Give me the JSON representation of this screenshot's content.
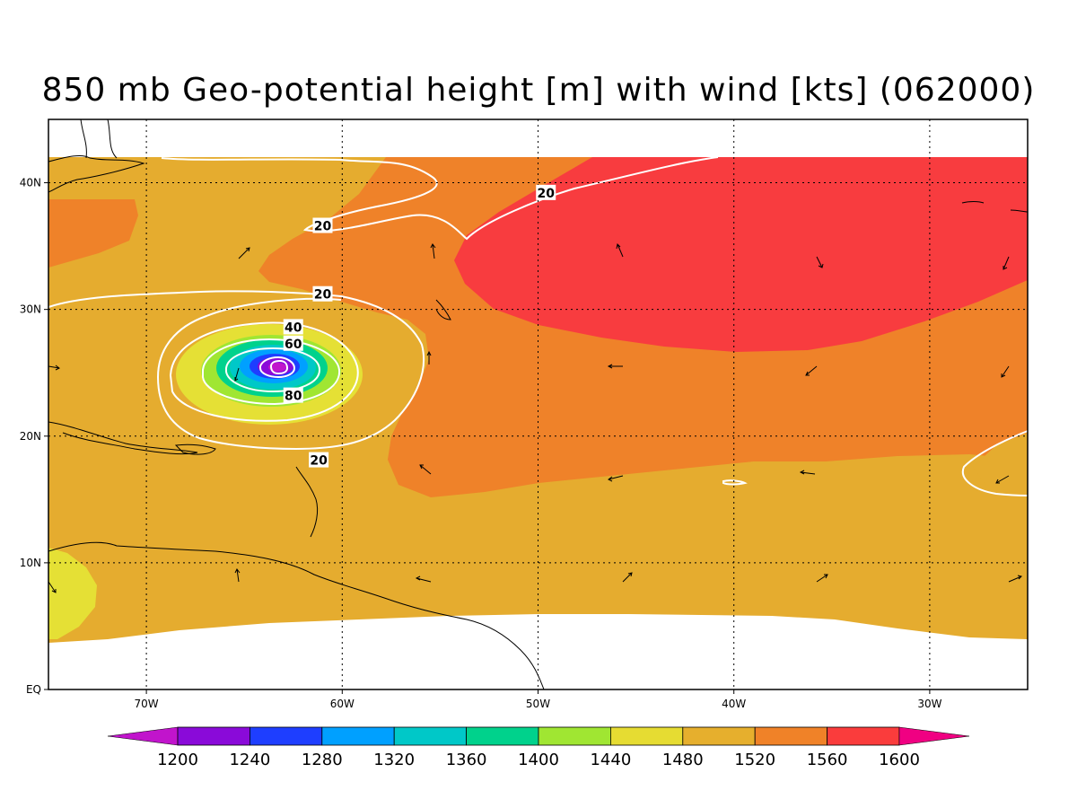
{
  "title": "850 mb Geo-potential height [m] with wind [kts] (062000)",
  "map": {
    "lat_range": [
      0,
      45
    ],
    "lon_range": [
      -75,
      -25
    ],
    "lat_ticks": [
      {
        "value": 40,
        "label": "40N"
      },
      {
        "value": 30,
        "label": "30N"
      },
      {
        "value": 20,
        "label": "20N"
      },
      {
        "value": 10,
        "label": "10N"
      },
      {
        "value": 0,
        "label": "EQ"
      }
    ],
    "lon_ticks": [
      {
        "value": -70,
        "label": "70W"
      },
      {
        "value": -60,
        "label": "60W"
      },
      {
        "value": -50,
        "label": "50W"
      },
      {
        "value": -40,
        "label": "40W"
      },
      {
        "value": -30,
        "label": "30W"
      }
    ],
    "grid": "dotted",
    "fill_colors": {
      "h1480": "#e5e035",
      "h1520": "#e5ac2f",
      "h1560": "#ef8229",
      "h1600": "#f83c3f"
    },
    "wind_contour_color": "#ffffff",
    "wind_contours": [
      {
        "value": "20",
        "lon": -61,
        "lat": 36.6
      },
      {
        "value": "20",
        "lon": -61,
        "lat": 31.2
      },
      {
        "value": "20",
        "lon": -49.6,
        "lat": 39.2
      },
      {
        "value": "20",
        "lon": -61.2,
        "lat": 18.1
      },
      {
        "value": "40",
        "lon": -62.5,
        "lat": 28.6
      },
      {
        "value": "60",
        "lon": -62.5,
        "lat": 27.3
      },
      {
        "value": "80",
        "lon": -62.5,
        "lat": 23.2
      }
    ]
  },
  "colorbar": {
    "labels": [
      "1200",
      "1240",
      "1280",
      "1320",
      "1360",
      "1400",
      "1440",
      "1480",
      "1520",
      "1560",
      "1600"
    ],
    "colors": [
      "#c114cc",
      "#8a0ad9",
      "#1e3eff",
      "#00a0ff",
      "#00c8c8",
      "#00d28c",
      "#a0e632",
      "#e6dc32",
      "#e6af2d",
      "#f08228",
      "#fa3c3c",
      "#f00082"
    ]
  }
}
